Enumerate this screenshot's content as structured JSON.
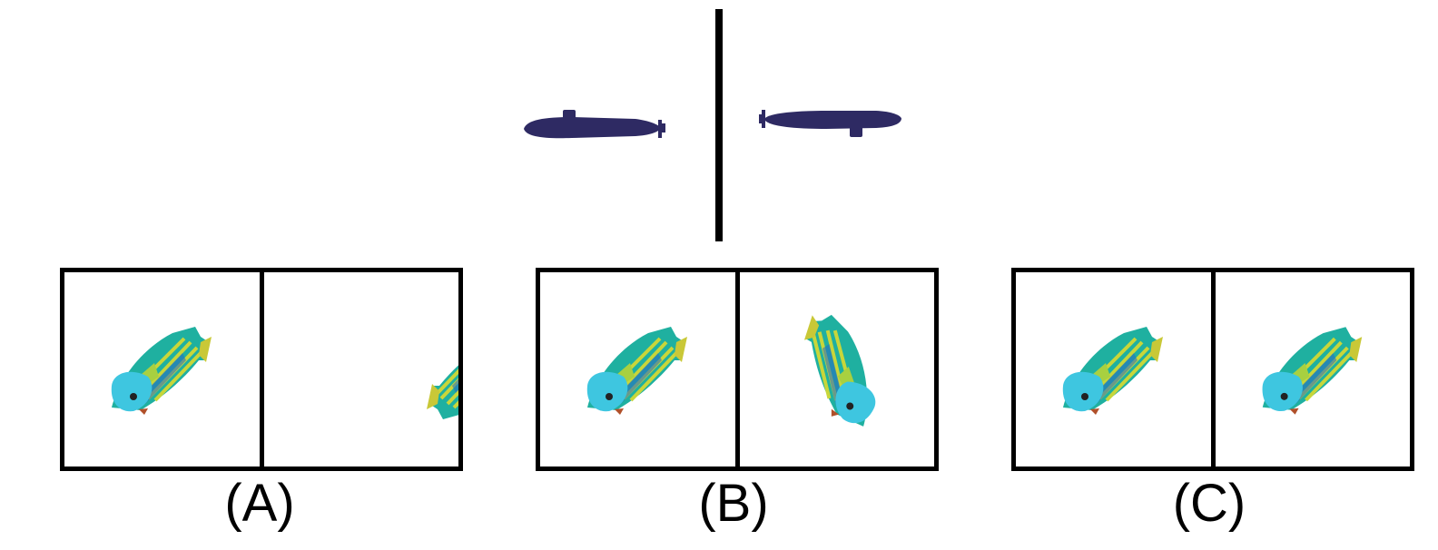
{
  "reference": {
    "left_icon": "submarine-icon",
    "right_icon": "submarine-mirrored-icon",
    "submarine_color": "#2e2a63"
  },
  "options": [
    {
      "label": "(A)",
      "left_icon": "fish-icon",
      "right_icon": "fish-rotated-icon"
    },
    {
      "label": "(B)",
      "left_icon": "fish-icon",
      "right_icon": "fish-flipped-icon"
    },
    {
      "label": "(C)",
      "left_icon": "fish-icon",
      "right_icon": "fish-icon"
    }
  ],
  "colors": {
    "fish_body": "#1fb0a0",
    "fish_head": "#3ec6e0",
    "fish_stripe": "#c8d63a",
    "fish_fin": "#c9c837",
    "frame": "#000000"
  }
}
